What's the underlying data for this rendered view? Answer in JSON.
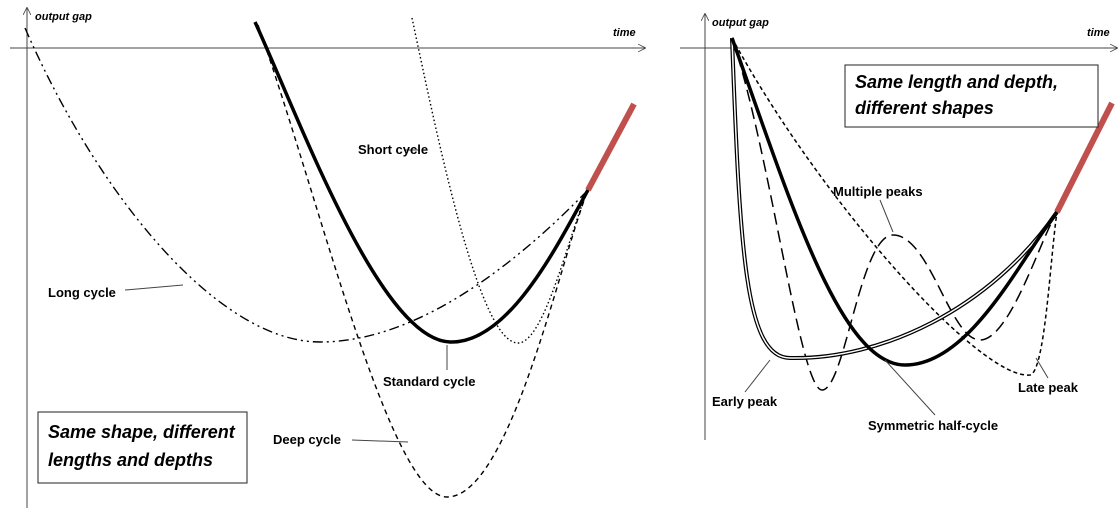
{
  "panels": [
    {
      "axis_y_label": "output gap",
      "axis_x_label": "time",
      "curve_labels": [
        "Short cycle",
        "Long cycle",
        "Standard cycle",
        "Deep cycle"
      ],
      "note": [
        "Same shape, different",
        "lengths and depths"
      ]
    },
    {
      "axis_y_label": "output gap",
      "axis_x_label": "time",
      "curve_labels": [
        "Multiple peaks",
        "Early peak",
        "Symmetric half-cycle",
        "Late peak"
      ],
      "note": [
        "Same length and depth,",
        "different shapes"
      ]
    }
  ]
}
